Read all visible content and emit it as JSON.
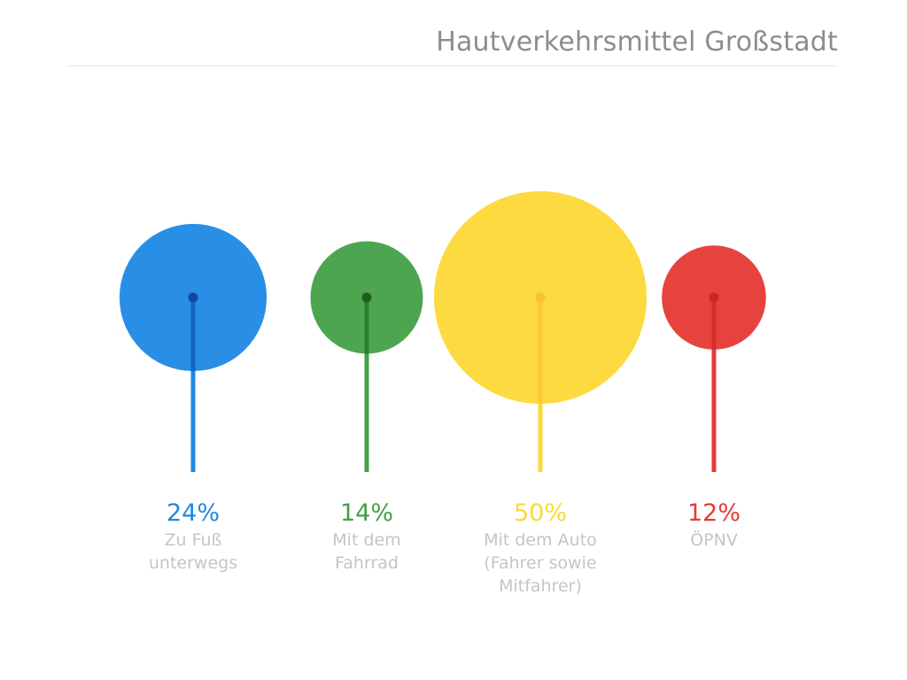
{
  "chart_data": {
    "type": "bubble-lollipop",
    "title": "Hautverkehrsmittel Großstadt",
    "categories": [
      "Zu Fuß\nunterwegs",
      "Mit dem\nFahrrad",
      "Mit dem Auto\n(Fahrer sowie\nMitfahrer)",
      "ÖPNV"
    ],
    "series": [
      {
        "values": [
          24,
          14,
          50,
          12
        ],
        "labels": [
          "24%",
          "14%",
          "50%",
          "12%"
        ]
      }
    ],
    "colors": {
      "bubbles": [
        "#1e88e5",
        "#43a047",
        "#fdd835",
        "#e53935"
      ],
      "stems": [
        "#1e88e5",
        "#43a047",
        "#fdd835",
        "#e53935"
      ],
      "dots": [
        "#0d47a1",
        "#1b5e20",
        "#fbc02d",
        "#c62828"
      ],
      "pct_text": [
        "#1e88e5",
        "#43a047",
        "#fdd835",
        "#e53935"
      ]
    }
  }
}
